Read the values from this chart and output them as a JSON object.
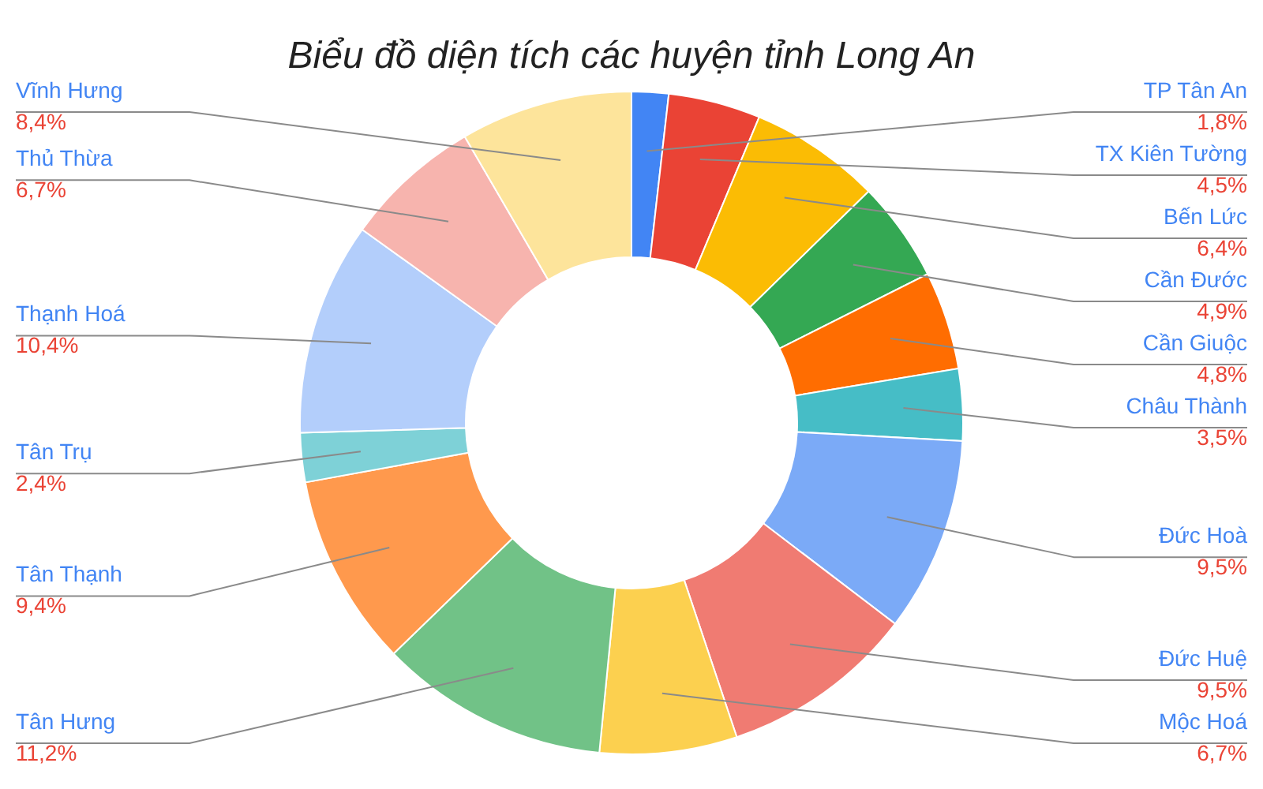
{
  "chart_data": {
    "type": "donut",
    "title": "Biểu đồ diện tích các huyện tỉnh Long An",
    "categories": [
      "TP Tân An",
      "TX Kiên Tường",
      "Bến Lức",
      "Cần Đước",
      "Cần Giuộc",
      "Châu Thành",
      "Đức Hoà",
      "Đức Huệ",
      "Mộc Hoá",
      "Tân Hưng",
      "Tân Thạnh",
      "Tân Trụ",
      "Thạnh Hoá",
      "Thủ Thừa",
      "Vĩnh Hưng"
    ],
    "values": [
      1.8,
      4.5,
      6.4,
      4.9,
      4.8,
      3.5,
      9.5,
      9.5,
      6.7,
      11.2,
      9.4,
      2.4,
      10.4,
      6.7,
      8.4
    ],
    "value_labels": [
      "1,8%",
      "4,5%",
      "6,4%",
      "4,9%",
      "4,8%",
      "3,5%",
      "9,5%",
      "9,5%",
      "6,7%",
      "11,2%",
      "9,4%",
      "2,4%",
      "10,4%",
      "6,7%",
      "8,4%"
    ],
    "colors": [
      "#4285f4",
      "#ea4335",
      "#fbbc04",
      "#34a853",
      "#ff6d01",
      "#46bdc6",
      "#7baaf7",
      "#f07b72",
      "#fcd04f",
      "#71c287",
      "#ff994d",
      "#7ed1d7",
      "#b3cefb",
      "#f7b4ae",
      "#fde49b"
    ]
  }
}
